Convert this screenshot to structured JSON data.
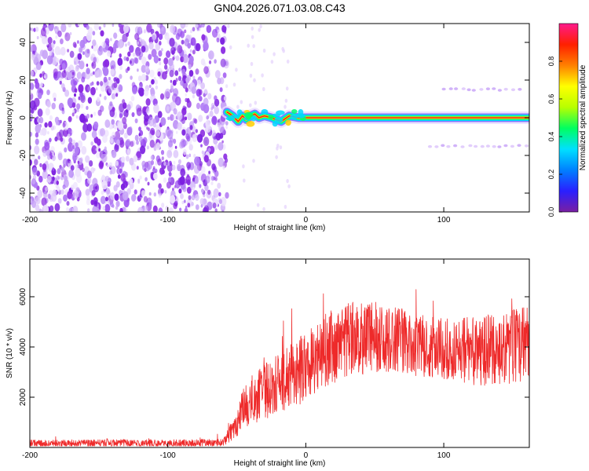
{
  "figure": {
    "title": "GN04.2026.071.03.08.C43"
  },
  "chart_data": [
    {
      "type": "heatmap",
      "xlabel": "Height of straight line (km)",
      "ylabel": "Frequency (Hz)",
      "xlim": [
        -200,
        162
      ],
      "ylim": [
        -50,
        50
      ],
      "xticks": [
        -200,
        -100,
        0,
        100
      ],
      "yticks": [
        -40,
        -20,
        0,
        20,
        40
      ],
      "colorbar": {
        "label": "Normalized spectral amplitude",
        "range": [
          0,
          1
        ],
        "ticks": [
          "0.0",
          "0.2",
          "0.4",
          "0.6",
          "0.8"
        ],
        "colormap": [
          "#7a1fa2",
          "#2a1fff",
          "#0080ff",
          "#00e0ff",
          "#00ff60",
          "#b8ff00",
          "#ffff00",
          "#ff8000",
          "#ff2000",
          "#ff1a8c"
        ]
      },
      "noise_region": {
        "x_range": [
          -200,
          -57
        ],
        "y_range": [
          -50,
          50
        ],
        "amplitude": [
          0.0,
          0.15
        ]
      },
      "signal_track": [
        {
          "x": -57,
          "y": 3
        },
        {
          "x": -53,
          "y": 1
        },
        {
          "x": -49,
          "y": -2
        },
        {
          "x": -46,
          "y": 1
        },
        {
          "x": -43,
          "y": -1
        },
        {
          "x": -40,
          "y": 1
        },
        {
          "x": -37,
          "y": 2
        },
        {
          "x": -34,
          "y": 0
        },
        {
          "x": -30,
          "y": 1
        },
        {
          "x": -25,
          "y": 0
        },
        {
          "x": -18,
          "y": -2
        },
        {
          "x": -12,
          "y": 1
        },
        {
          "x": -5,
          "y": 0
        },
        {
          "x": 0,
          "y": 0
        },
        {
          "x": 10,
          "y": 0
        },
        {
          "x": 162,
          "y": 0
        }
      ],
      "sidebands": [
        {
          "y": 15,
          "x_range": [
            100,
            160
          ]
        },
        {
          "y": -15,
          "x_range": [
            90,
            160
          ]
        }
      ]
    },
    {
      "type": "line",
      "xlabel": "Height of straight line (km)",
      "ylabel": "SNR (10 * v/v)",
      "xlim": [
        -200,
        162
      ],
      "ylim": [
        0,
        7500
      ],
      "xticks": [
        -200,
        -100,
        0,
        100
      ],
      "yticks": [
        2000,
        4000,
        6000
      ],
      "color": "#ee2a2a",
      "series": [
        {
          "x": [
            -200,
            -150,
            -100,
            -60,
            -50,
            -45,
            -40,
            -30,
            -20,
            -10,
            0,
            10,
            20,
            30,
            50,
            70,
            90,
            110,
            130,
            150,
            162
          ],
          "y": [
            150,
            180,
            160,
            200,
            900,
            1600,
            1900,
            2200,
            2500,
            2900,
            3200,
            3800,
            4000,
            4300,
            4400,
            4200,
            4000,
            3900,
            3800,
            4000,
            4100
          ],
          "spread": [
            150,
            150,
            150,
            150,
            500,
            800,
            1000,
            1100,
            1200,
            1300,
            1400,
            1500,
            1500,
            1500,
            1400,
            1300,
            1200,
            1300,
            1400,
            1500,
            1500
          ]
        }
      ]
    }
  ]
}
